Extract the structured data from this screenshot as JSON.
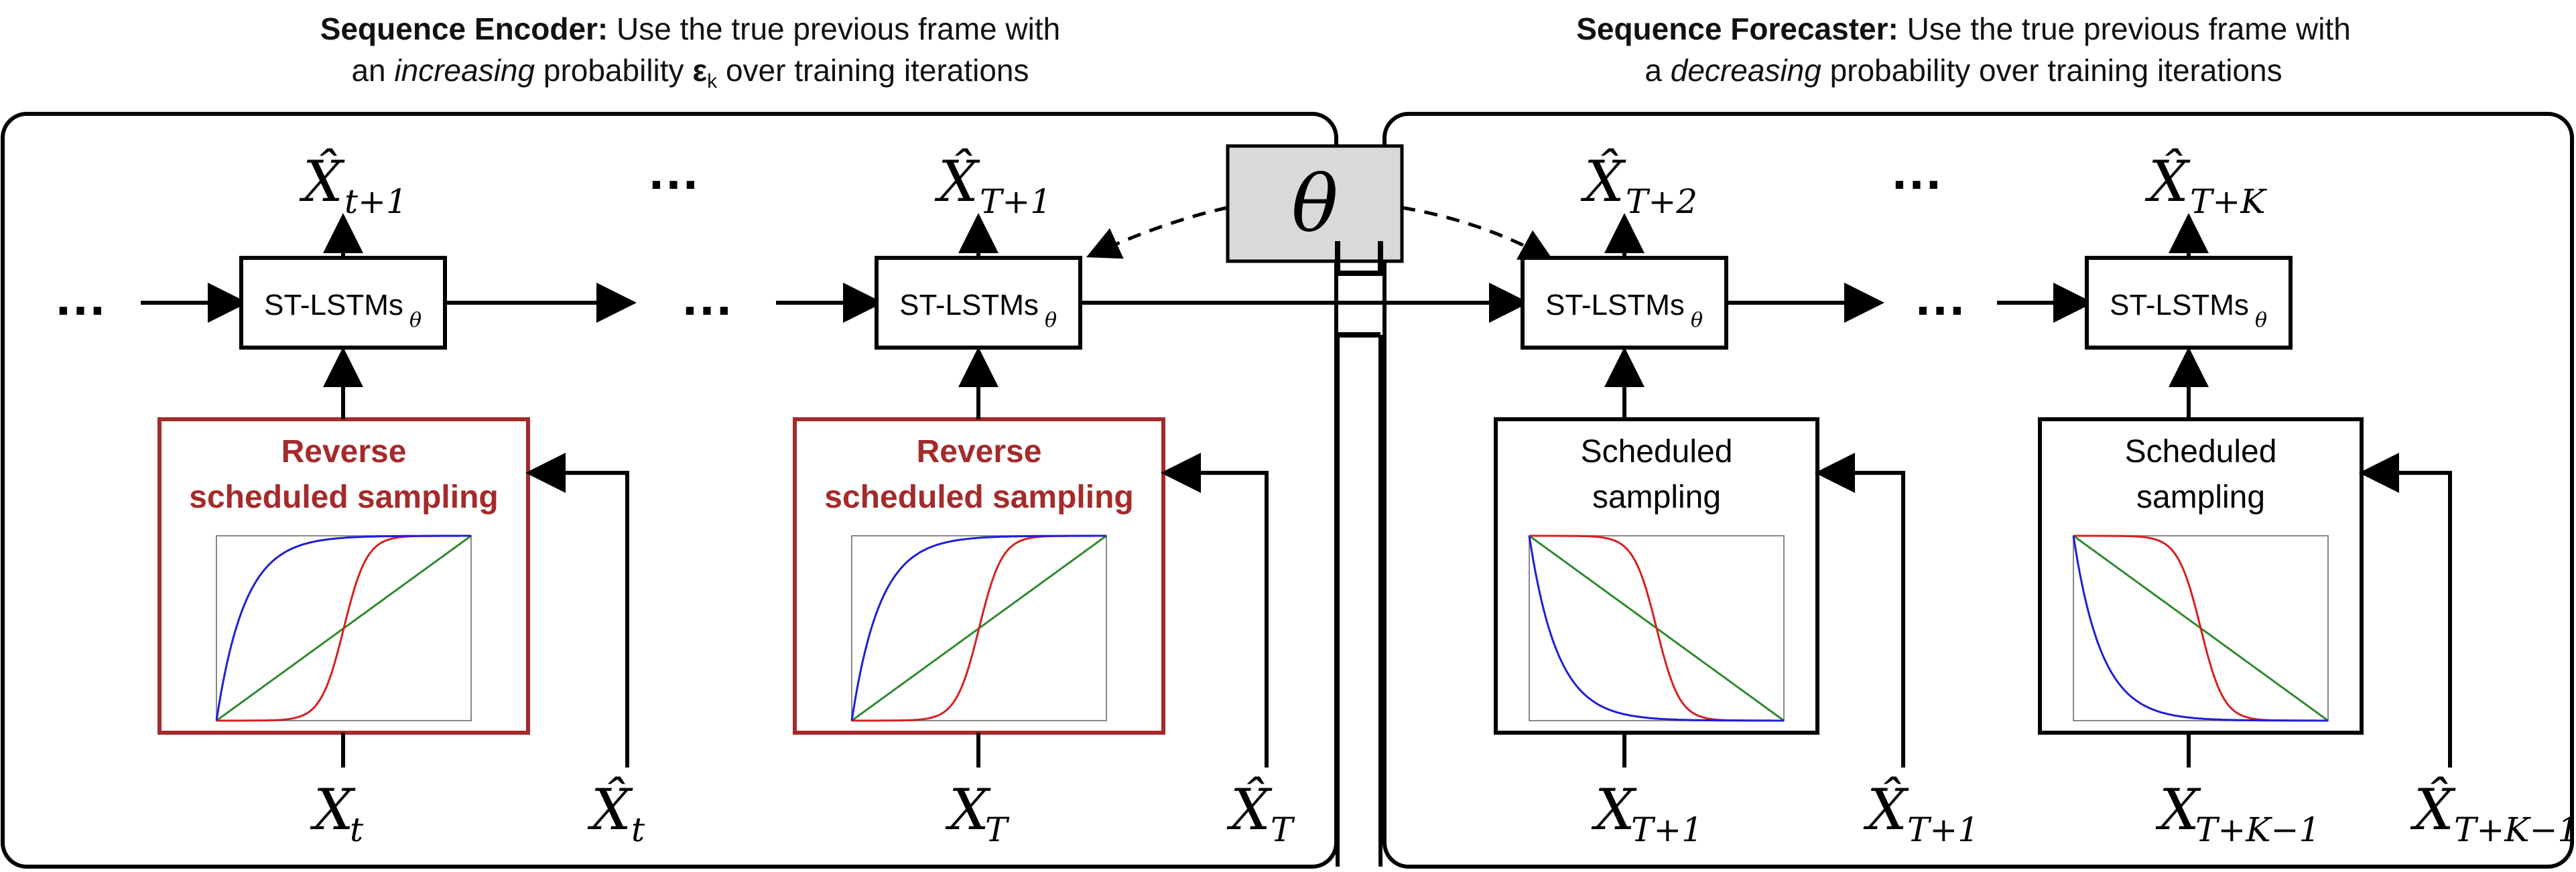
{
  "encoder_caption": {
    "bold": "Sequence Encoder:",
    "line1_rest": " Use the true previous frame with",
    "line2_pre": "an ",
    "line2_em": "increasing",
    "line2_mid": " probability ",
    "epsilon": "ε",
    "epsilon_sub": "k",
    "line2_post": " over training iterations"
  },
  "forecaster_caption": {
    "bold": "Sequence Forecaster:",
    "line1_rest": " Use the true previous frame with",
    "line2_pre": "a ",
    "line2_em": "decreasing",
    "line2_post": " probability over training iterations"
  },
  "theta": "θ",
  "ellipsis": "…",
  "cell_label": "ST-LSTMs",
  "cell_sub": "θ",
  "reverse_label_1": "Reverse",
  "reverse_label_2": "scheduled sampling",
  "sched_label_1": "Scheduled",
  "sched_label_2": "sampling",
  "hat_symbol": "X̂",
  "x_symbol": "X",
  "columns": [
    {
      "out_sub": "t+1",
      "in_sub": "t",
      "hat_in_sub": "t"
    },
    {
      "out_sub": "T+1",
      "in_sub": "T",
      "hat_in_sub": "T"
    },
    {
      "out_sub": "T+2",
      "in_sub": "T+1",
      "hat_in_sub": "T+1"
    },
    {
      "out_sub": "T+K",
      "in_sub": "T+K−1",
      "hat_in_sub": "T+K−1"
    }
  ],
  "colors": {
    "reverse_box": "#a52a2a",
    "curve_blue": "#1f1fd6",
    "curve_red": "#d62020",
    "curve_green": "#2e8b2e",
    "theta_fill": "#d9d9d9"
  }
}
